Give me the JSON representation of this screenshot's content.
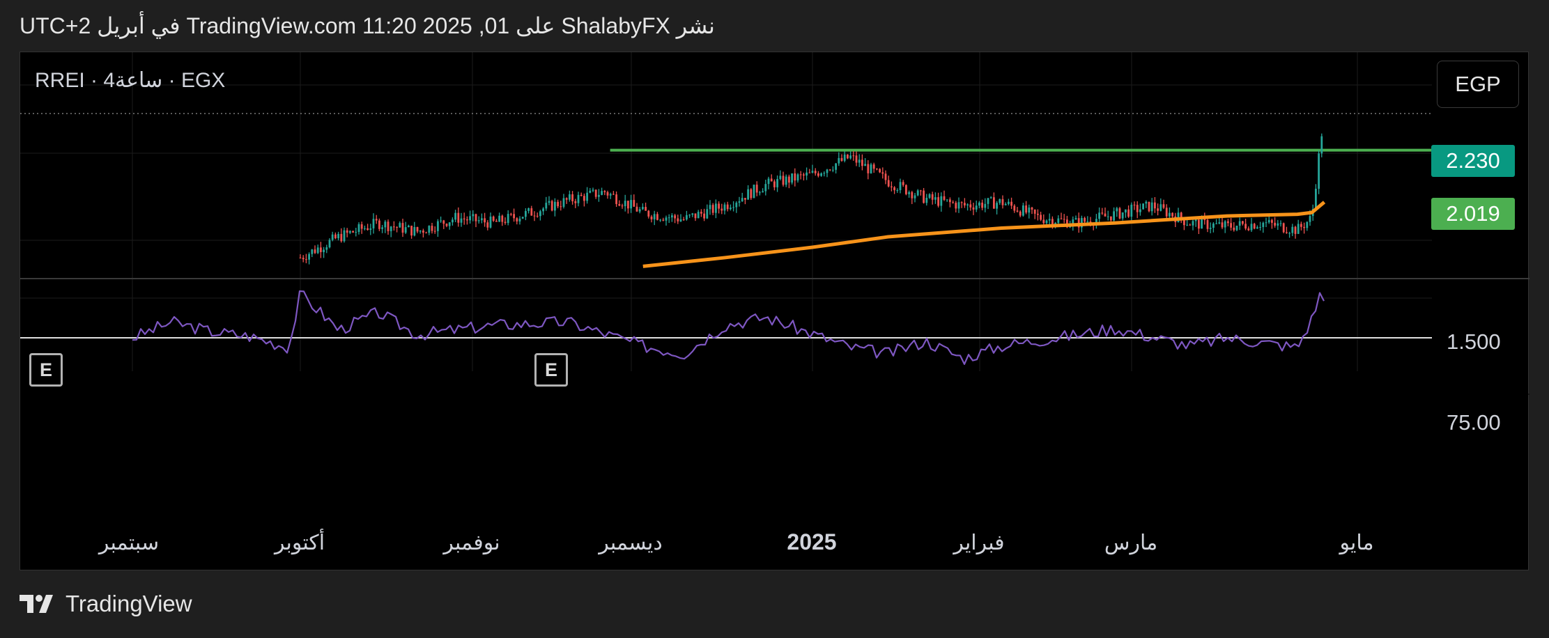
{
  "header": {
    "text": "نشر ShalabyFX على TradingView.com 11:20 2025 ,01 في أبريل UTC+2"
  },
  "symbol": {
    "label": "RREI · 4ساعة · EGX"
  },
  "currency": {
    "label": "EGP"
  },
  "price_tags": {
    "last": {
      "value": "2.230",
      "color": "#089981"
    },
    "level": {
      "value": "2.019",
      "color": "#4caf50"
    }
  },
  "price_axis": {
    "label_1500": "1.500"
  },
  "rsi_axis": {
    "label_75": "75.00"
  },
  "events": {
    "e1": "E",
    "e2": "E"
  },
  "time_axis": {
    "sep": "سبتمبر",
    "oct": "أكتوبر",
    "nov": "نوفمبر",
    "dec": "ديسمبر",
    "y2025": "2025",
    "feb": "فبراير",
    "mar": "مارس",
    "may": "مايو"
  },
  "footer": {
    "brand": "TradingView"
  },
  "chart_data": [
    {
      "type": "candlestick",
      "symbol": "RREI",
      "exchange": "EGX",
      "timeframe": "4ساعة",
      "currency": "EGP",
      "x_ticks": [
        "سبتمبر",
        "أكتوبر",
        "نوفمبر",
        "ديسمبر",
        "2025",
        "فبراير",
        "مارس",
        "مايو"
      ],
      "y_ticks": [
        1.5
      ],
      "last_price": 2.23,
      "horizontal_level": 2.019,
      "colors": {
        "up": "#26a69a",
        "down": "#ef5350",
        "moving_average": "#f7931a",
        "level_line": "#4caf50"
      },
      "grid": true,
      "approx_close_path": [
        {
          "t": "2024-10-01",
          "close": 1.4
        },
        {
          "t": "2024-10-08",
          "close": 1.52
        },
        {
          "t": "2024-10-15",
          "close": 1.6
        },
        {
          "t": "2024-10-22",
          "close": 1.55
        },
        {
          "t": "2024-10-29",
          "close": 1.63
        },
        {
          "t": "2024-11-05",
          "close": 1.6
        },
        {
          "t": "2024-11-12",
          "close": 1.66
        },
        {
          "t": "2024-11-19",
          "close": 1.73
        },
        {
          "t": "2024-11-26",
          "close": 1.78
        },
        {
          "t": "2024-12-03",
          "close": 1.66
        },
        {
          "t": "2024-12-10",
          "close": 1.62
        },
        {
          "t": "2024-12-17",
          "close": 1.7
        },
        {
          "t": "2024-12-24",
          "close": 1.82
        },
        {
          "t": "2025-01-01",
          "close": 1.88
        },
        {
          "t": "2025-01-08",
          "close": 1.98
        },
        {
          "t": "2025-01-15",
          "close": 1.84
        },
        {
          "t": "2025-01-22",
          "close": 1.74
        },
        {
          "t": "2025-01-29",
          "close": 1.7
        },
        {
          "t": "2025-02-05",
          "close": 1.72
        },
        {
          "t": "2025-02-12",
          "close": 1.63
        },
        {
          "t": "2025-02-19",
          "close": 1.6
        },
        {
          "t": "2025-02-26",
          "close": 1.65
        },
        {
          "t": "2025-03-05",
          "close": 1.7
        },
        {
          "t": "2025-03-12",
          "close": 1.6
        },
        {
          "t": "2025-03-19",
          "close": 1.58
        },
        {
          "t": "2025-03-26",
          "close": 1.6
        },
        {
          "t": "2025-04-02",
          "close": 1.56
        },
        {
          "t": "2025-04-09",
          "close": 1.63
        },
        {
          "t": "2025-04-13",
          "close": 2.05
        },
        {
          "t": "2025-04-15",
          "close": 2.23
        }
      ],
      "moving_average_path": [
        {
          "t": "2024-12-03",
          "value": 1.35
        },
        {
          "t": "2024-12-17",
          "value": 1.4
        },
        {
          "t": "2025-01-01",
          "value": 1.46
        },
        {
          "t": "2025-01-15",
          "value": 1.52
        },
        {
          "t": "2025-02-05",
          "value": 1.57
        },
        {
          "t": "2025-02-26",
          "value": 1.6
        },
        {
          "t": "2025-03-19",
          "value": 1.64
        },
        {
          "t": "2025-04-02",
          "value": 1.65
        },
        {
          "t": "2025-04-09",
          "value": 1.66
        },
        {
          "t": "2025-04-15",
          "value": 1.72
        }
      ]
    },
    {
      "type": "line",
      "indicator": "RSI",
      "y_ticks": [
        75.0
      ],
      "reference_line": 50,
      "color": "#7e57c2",
      "approx_path": [
        {
          "t": "2024-09-01",
          "value": 50
        },
        {
          "t": "2024-09-08",
          "value": 60
        },
        {
          "t": "2024-09-15",
          "value": 54
        },
        {
          "t": "2024-09-22",
          "value": 51
        },
        {
          "t": "2024-09-29",
          "value": 44
        },
        {
          "t": "2024-10-01",
          "value": 78
        },
        {
          "t": "2024-10-08",
          "value": 55
        },
        {
          "t": "2024-10-15",
          "value": 66
        },
        {
          "t": "2024-10-22",
          "value": 52
        },
        {
          "t": "2024-11-05",
          "value": 58
        },
        {
          "t": "2024-11-19",
          "value": 60
        },
        {
          "t": "2024-12-03",
          "value": 45
        },
        {
          "t": "2024-12-10",
          "value": 40
        },
        {
          "t": "2024-12-17",
          "value": 58
        },
        {
          "t": "2024-12-24",
          "value": 63
        },
        {
          "t": "2025-01-08",
          "value": 44
        },
        {
          "t": "2025-01-15",
          "value": 40
        },
        {
          "t": "2025-01-22",
          "value": 48
        },
        {
          "t": "2025-01-29",
          "value": 37
        },
        {
          "t": "2025-02-05",
          "value": 45
        },
        {
          "t": "2025-02-19",
          "value": 52
        },
        {
          "t": "2025-02-26",
          "value": 56
        },
        {
          "t": "2025-03-12",
          "value": 45
        },
        {
          "t": "2025-03-19",
          "value": 50
        },
        {
          "t": "2025-03-26",
          "value": 47
        },
        {
          "t": "2025-04-02",
          "value": 44
        },
        {
          "t": "2025-04-09",
          "value": 62
        },
        {
          "t": "2025-04-13",
          "value": 78
        },
        {
          "t": "2025-04-15",
          "value": 73
        }
      ]
    }
  ]
}
